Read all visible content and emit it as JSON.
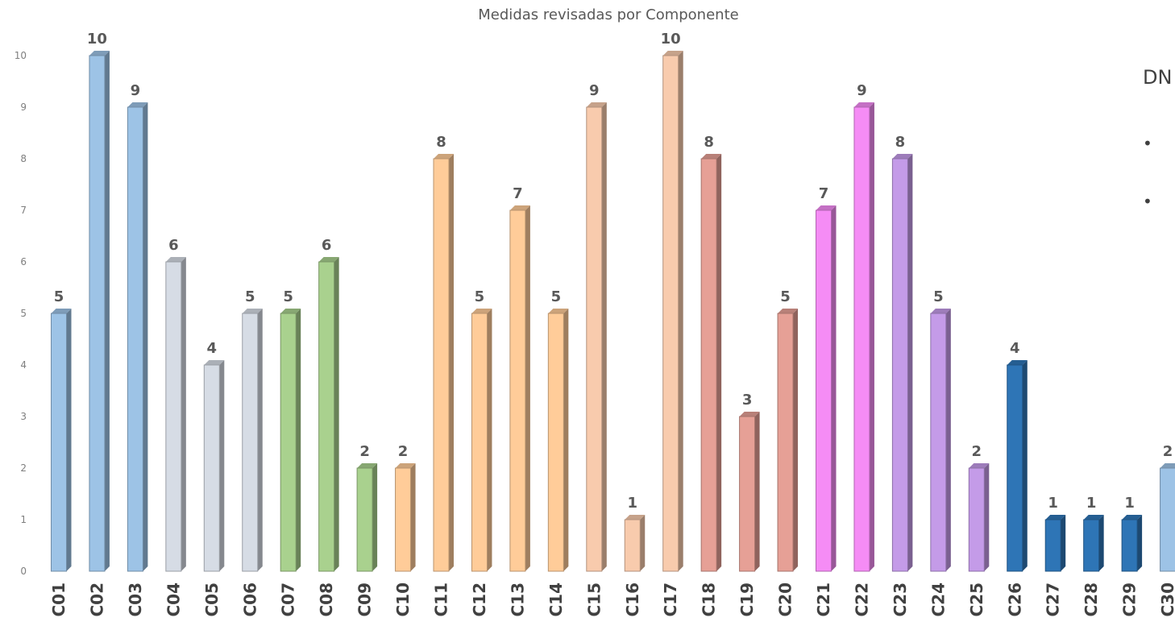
{
  "chart_data": {
    "type": "bar",
    "title": "Medidas revisadas por Componente",
    "xlabel": "",
    "ylabel": "",
    "ylim": [
      0,
      10
    ],
    "y_ticks": [
      "0",
      "1",
      "2",
      "3",
      "4",
      "5",
      "6",
      "7",
      "8",
      "9",
      "10"
    ],
    "grid": false,
    "legend": "none",
    "categories": [
      "C01",
      "C02",
      "C03",
      "C04",
      "C05",
      "C06",
      "C07",
      "C08",
      "C09",
      "C10",
      "C11",
      "C12",
      "C13",
      "C14",
      "C15",
      "C16",
      "C17",
      "C18",
      "C19",
      "C20",
      "C21",
      "C22",
      "C23",
      "C24",
      "C25",
      "C26",
      "C27",
      "C28",
      "C29",
      "C30"
    ],
    "values": [
      5,
      10,
      9,
      6,
      4,
      5,
      5,
      6,
      2,
      2,
      8,
      5,
      7,
      5,
      9,
      1,
      10,
      8,
      3,
      5,
      7,
      9,
      8,
      5,
      2,
      4,
      1,
      1,
      1,
      2
    ],
    "colors": [
      "#9dc3e6",
      "#9dc3e6",
      "#9dc3e6",
      "#d6dce5",
      "#d6dce5",
      "#d6dce5",
      "#a9d18e",
      "#a9d18e",
      "#a9d18e",
      "#ffcc99",
      "#ffcc99",
      "#ffcc99",
      "#ffcc99",
      "#ffcc99",
      "#f8cbad",
      "#f8cbad",
      "#f8cbad",
      "#e6a096",
      "#e6a096",
      "#e6a096",
      "#f58cf5",
      "#f58cf5",
      "#c49be8",
      "#c49be8",
      "#c49be8",
      "#2e75b6",
      "#2e75b6",
      "#2e75b6",
      "#2e75b6",
      "#9dc3e6"
    ]
  },
  "side_panel": {
    "heading": "DN",
    "bullets": [
      "•",
      "•"
    ]
  }
}
